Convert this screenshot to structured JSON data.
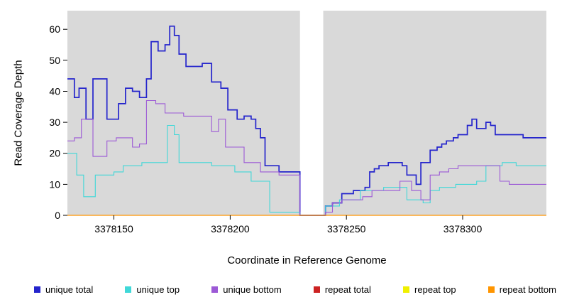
{
  "figure": {
    "background": "#ffffff",
    "plot_background": "#d9d9d9",
    "gap_color": "#ffffff",
    "tick_color": "#000000",
    "text_color": "#000000"
  },
  "chart_data": {
    "type": "line",
    "subtype": "step",
    "title": "",
    "xlabel": "Coordinate in Reference Genome",
    "ylabel": "Read Coverage Depth",
    "xlim": [
      3378130,
      3378336
    ],
    "ylim": [
      0,
      66
    ],
    "x_ticks": [
      3378150,
      3378200,
      3378250,
      3378300
    ],
    "y_ticks": [
      0,
      10,
      20,
      30,
      40,
      50,
      60
    ],
    "grid": false,
    "legend_position": "bottom",
    "gap_region": {
      "x_start": 3378230,
      "x_end": 3378240
    },
    "series": [
      {
        "label": "unique total",
        "color": "#2424CC",
        "width": 1.7,
        "points": [
          [
            3378130,
            44
          ],
          [
            3378133,
            38
          ],
          [
            3378135,
            41
          ],
          [
            3378138,
            31
          ],
          [
            3378141,
            44
          ],
          [
            3378147,
            31
          ],
          [
            3378152,
            36
          ],
          [
            3378155,
            41
          ],
          [
            3378158,
            40
          ],
          [
            3378161,
            38
          ],
          [
            3378164,
            44
          ],
          [
            3378166,
            56
          ],
          [
            3378169,
            53
          ],
          [
            3378172,
            55
          ],
          [
            3378174,
            61
          ],
          [
            3378176,
            58
          ],
          [
            3378178,
            52
          ],
          [
            3378181,
            48
          ],
          [
            3378188,
            49
          ],
          [
            3378192,
            43
          ],
          [
            3378196,
            41
          ],
          [
            3378199,
            34
          ],
          [
            3378203,
            31
          ],
          [
            3378206,
            32
          ],
          [
            3378209,
            31
          ],
          [
            3378211,
            28
          ],
          [
            3378213,
            25
          ],
          [
            3378215,
            16
          ],
          [
            3378221,
            14
          ],
          [
            3378230,
            0
          ],
          [
            3378241,
            3
          ],
          [
            3378244,
            4
          ],
          [
            3378248,
            7
          ],
          [
            3378253,
            8
          ],
          [
            3378258,
            9
          ],
          [
            3378260,
            14
          ],
          [
            3378262,
            15
          ],
          [
            3378264,
            16
          ],
          [
            3378268,
            17
          ],
          [
            3378274,
            16
          ],
          [
            3378276,
            13
          ],
          [
            3378280,
            10
          ],
          [
            3378282,
            17
          ],
          [
            3378286,
            21
          ],
          [
            3378289,
            22
          ],
          [
            3378291,
            23
          ],
          [
            3378293,
            24
          ],
          [
            3378296,
            25
          ],
          [
            3378298,
            26
          ],
          [
            3378302,
            29
          ],
          [
            3378304,
            31
          ],
          [
            3378306,
            28
          ],
          [
            3378310,
            30
          ],
          [
            3378312,
            29
          ],
          [
            3378314,
            26
          ],
          [
            3378326,
            25
          ]
        ]
      },
      {
        "label": "unique top",
        "color": "#40D8D8",
        "width": 1.1,
        "points": [
          [
            3378130,
            20
          ],
          [
            3378134,
            13
          ],
          [
            3378137,
            6
          ],
          [
            3378142,
            13
          ],
          [
            3378150,
            14
          ],
          [
            3378154,
            16
          ],
          [
            3378162,
            17
          ],
          [
            3378173,
            29
          ],
          [
            3378176,
            26
          ],
          [
            3378178,
            17
          ],
          [
            3378192,
            16
          ],
          [
            3378202,
            14
          ],
          [
            3378209,
            11
          ],
          [
            3378217,
            1
          ],
          [
            3378230,
            0
          ],
          [
            3378241,
            3
          ],
          [
            3378247,
            5
          ],
          [
            3378256,
            8
          ],
          [
            3378266,
            9
          ],
          [
            3378276,
            5
          ],
          [
            3378283,
            4
          ],
          [
            3378286,
            8
          ],
          [
            3378290,
            9
          ],
          [
            3378297,
            10
          ],
          [
            3378306,
            11
          ],
          [
            3378310,
            16
          ],
          [
            3378317,
            17
          ],
          [
            3378323,
            16
          ]
        ]
      },
      {
        "label": "unique bottom",
        "color": "#9C59D6",
        "width": 1.1,
        "points": [
          [
            3378130,
            24
          ],
          [
            3378133,
            25
          ],
          [
            3378136,
            31
          ],
          [
            3378141,
            19
          ],
          [
            3378147,
            24
          ],
          [
            3378151,
            25
          ],
          [
            3378158,
            22
          ],
          [
            3378161,
            23
          ],
          [
            3378164,
            37
          ],
          [
            3378168,
            36
          ],
          [
            3378172,
            33
          ],
          [
            3378180,
            32
          ],
          [
            3378192,
            27
          ],
          [
            3378195,
            31
          ],
          [
            3378198,
            22
          ],
          [
            3378206,
            17
          ],
          [
            3378213,
            14
          ],
          [
            3378221,
            13
          ],
          [
            3378230,
            0
          ],
          [
            3378241,
            1
          ],
          [
            3378244,
            4
          ],
          [
            3378248,
            5
          ],
          [
            3378257,
            6
          ],
          [
            3378261,
            8
          ],
          [
            3378273,
            11
          ],
          [
            3378278,
            8
          ],
          [
            3378282,
            5
          ],
          [
            3378286,
            13
          ],
          [
            3378290,
            14
          ],
          [
            3378294,
            15
          ],
          [
            3378298,
            16
          ],
          [
            3378316,
            11
          ],
          [
            3378320,
            10
          ]
        ]
      },
      {
        "label": "repeat total",
        "color": "#CC2222",
        "width": 1.1,
        "points": [
          [
            3378130,
            0
          ]
        ]
      },
      {
        "label": "repeat top",
        "color": "#F0F000",
        "width": 1.1,
        "points": [
          [
            3378130,
            0
          ]
        ]
      },
      {
        "label": "repeat bottom",
        "color": "#FF9500",
        "width": 1.3,
        "points": [
          [
            3378130,
            0
          ]
        ]
      }
    ]
  }
}
